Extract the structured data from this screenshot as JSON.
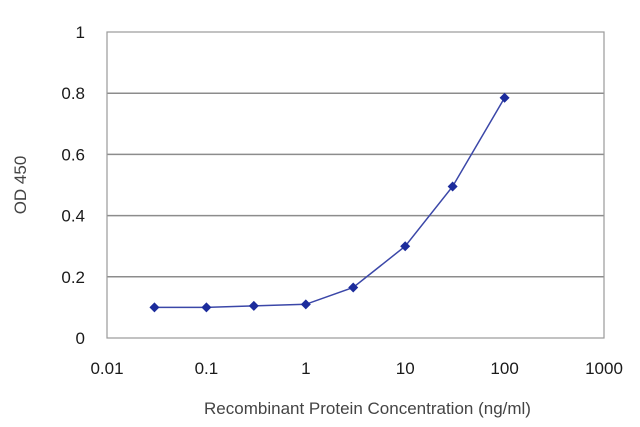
{
  "chart_data": {
    "type": "line",
    "xlabel": "Recombinant Protein Concentration (ng/ml)",
    "ylabel": "OD 450",
    "x_scale": "log",
    "xlim": [
      0.01,
      1000
    ],
    "ylim": [
      0,
      1
    ],
    "x_ticks": [
      "0.01",
      "0.1",
      "1",
      "10",
      "100",
      "1000"
    ],
    "y_ticks": [
      "0",
      "0.2",
      "0.4",
      "0.6",
      "0.8",
      "1"
    ],
    "grid": "horizontal",
    "series": [
      {
        "x": [
          0.03,
          0.1,
          0.3,
          1,
          3,
          10,
          30,
          100
        ],
        "y": [
          0.1,
          0.1,
          0.105,
          0.11,
          0.165,
          0.3,
          0.495,
          0.785
        ]
      }
    ],
    "colors": {
      "line": "#3b47a8",
      "marker": "#1c2c9c",
      "grid": "#8c8c8c",
      "plot_border": "#9a9a9a"
    }
  }
}
